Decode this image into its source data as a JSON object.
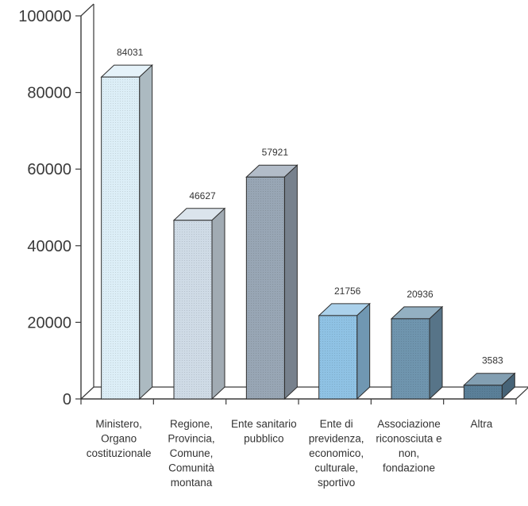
{
  "chart_data": {
    "type": "bar",
    "style": "3d",
    "categories": [
      [
        "Ministero,",
        "Organo",
        "costituzionale"
      ],
      [
        "Regione,",
        "Provincia,",
        "Comune,",
        "Comunità",
        "montana"
      ],
      [
        "Ente sanitario",
        "pubblico"
      ],
      [
        "Ente di",
        "previdenza,",
        "economico,",
        "culturale,",
        "sportivo"
      ],
      [
        "Associazione",
        "riconosciuta e",
        "non,",
        "fondazione"
      ],
      [
        "Altra"
      ]
    ],
    "values": [
      84031,
      46627,
      57921,
      21756,
      20936,
      3583
    ],
    "value_labels": [
      "84031",
      "46627",
      "57921",
      "21756",
      "20936",
      "3583"
    ],
    "ylim": [
      0,
      100000
    ],
    "yticks": [
      "0",
      "20000",
      "40000",
      "60000",
      "80000",
      "100000"
    ],
    "grid": false,
    "legend": "none",
    "colors": [
      "#dceef7",
      "#cfdbe6",
      "#98a6b5",
      "#8fc2e4",
      "#6f95ae",
      "#5a7f98"
    ]
  }
}
